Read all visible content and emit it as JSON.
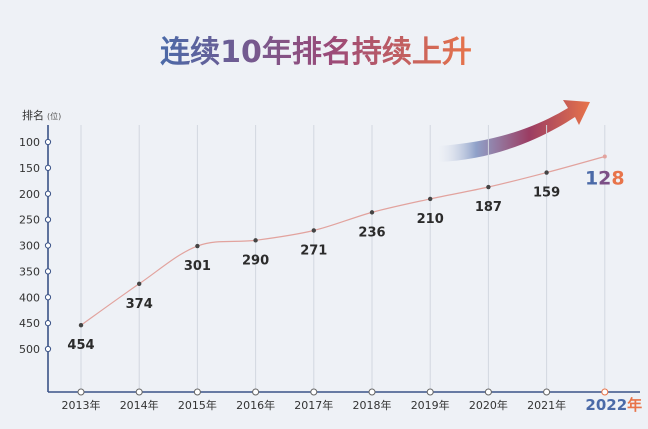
{
  "colors": {
    "background": "#eef1f6",
    "axis": "#3a5287",
    "line": "#e2a39e",
    "point": "#444444",
    "accent_blue": "#4b6aa8",
    "accent_orange": "#e8744a",
    "arrow_start": "#dfe6f3",
    "arrow_mid": "#9b3d63",
    "arrow_end": "#e8744a"
  },
  "chart_data": {
    "type": "line",
    "title": "连续10年排名持续上升",
    "ylabel": "排名",
    "ylabel_unit": "(位)",
    "y_reversed": true,
    "ylim": [
      90,
      590
    ],
    "y_ticks": [
      100,
      150,
      200,
      250,
      300,
      350,
      400,
      450,
      500
    ],
    "grid": "vertical",
    "categories": [
      "2013年",
      "2014年",
      "2015年",
      "2016年",
      "2017年",
      "2018年",
      "2019年",
      "2020年",
      "2021年",
      "2022年"
    ],
    "values": [
      454,
      374,
      301,
      290,
      271,
      236,
      210,
      187,
      159,
      128
    ],
    "data_labels": [
      "454",
      "374",
      "301",
      "290",
      "271",
      "236",
      "210",
      "187",
      "159",
      "128"
    ],
    "highlight_last": true
  }
}
